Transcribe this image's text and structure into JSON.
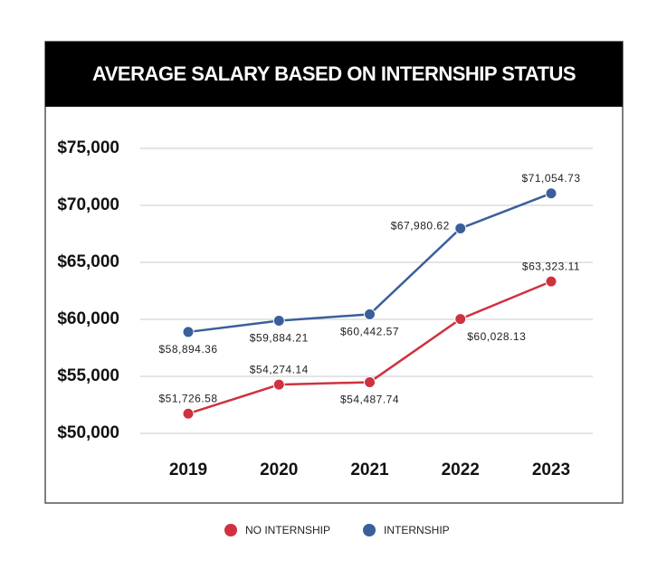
{
  "chart_data": {
    "type": "line",
    "title": "AVERAGE SALARY BASED ON INTERNSHIP STATUS",
    "categories": [
      "2019",
      "2020",
      "2021",
      "2022",
      "2023"
    ],
    "series": [
      {
        "name": "NO INTERNSHIP",
        "color": "#d0313f",
        "values": [
          51726.58,
          54274.14,
          54487.74,
          60028.13,
          63323.11
        ],
        "value_labels": [
          "$51,726.58",
          "$54,274.14",
          "$54,487.74",
          "$60,028.13",
          "$63,323.11"
        ]
      },
      {
        "name": "INTERNSHIP",
        "color": "#3a5f9a",
        "values": [
          58894.36,
          59884.21,
          60442.57,
          67980.62,
          71054.73
        ],
        "value_labels": [
          "$58,894.36",
          "$59,884.21",
          "$60,442.57",
          "$67,980.62",
          "$71,054.73"
        ]
      }
    ],
    "ylim": [
      50000,
      75000
    ],
    "yticks": [
      {
        "value": 50000,
        "label": "$50,000"
      },
      {
        "value": 55000,
        "label": "$55,000"
      },
      {
        "value": 60000,
        "label": "$60,000"
      },
      {
        "value": 65000,
        "label": "$65,000"
      },
      {
        "value": 70000,
        "label": "$70,000"
      },
      {
        "value": 75000,
        "label": "$75,000"
      }
    ],
    "grid": true
  }
}
